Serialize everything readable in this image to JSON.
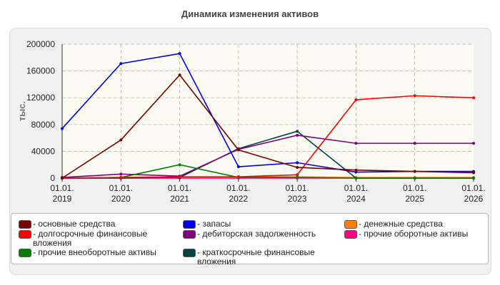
{
  "chart_data": {
    "type": "line",
    "title": "Динамика изменения активов",
    "ylabel": "тыс.",
    "xlabel": "",
    "categories": [
      "01.01. 2019",
      "01.01. 2020",
      "01.01. 2021",
      "01.01. 2022",
      "01.01. 2023",
      "01.01. 2024",
      "01.01. 2025",
      "01.01. 2026"
    ],
    "yticks": [
      "0",
      "40000",
      "80000",
      "120000",
      "160000",
      "200000"
    ],
    "ylim": [
      0,
      200000
    ],
    "grid": true,
    "legend_position": "bottom",
    "series": [
      {
        "name": "основные средства",
        "color": "#7a0000",
        "values": [
          0,
          57000,
          154000,
          42000,
          16000,
          12000,
          10000,
          8000
        ]
      },
      {
        "name": "долгосрочные финансовые вложения",
        "color": "#ff0000",
        "values": [
          0,
          1000,
          2000,
          2000,
          5000,
          117000,
          123000,
          120000
        ]
      },
      {
        "name": "прочие внеоборотные активы",
        "color": "#008000",
        "values": [
          0,
          1000,
          20000,
          1000,
          1000,
          0,
          0,
          0
        ]
      },
      {
        "name": "запасы",
        "color": "#0000ee",
        "values": [
          74000,
          171000,
          186000,
          17000,
          23000,
          9000,
          10000,
          10000
        ]
      },
      {
        "name": "дебиторская задолженность",
        "color": "#800080",
        "values": [
          1000,
          6000,
          3000,
          43000,
          64000,
          52000,
          52000,
          52000
        ]
      },
      {
        "name": "краткосрочные финансовые вложения",
        "color": "#004545",
        "values": [
          0,
          0,
          1000,
          44000,
          70000,
          0,
          0,
          0
        ]
      },
      {
        "name": "денежные средства",
        "color": "#ff8000",
        "values": [
          0,
          1000,
          1000,
          2000,
          2000,
          1000,
          1000,
          1000
        ]
      },
      {
        "name": "прочие оборотные активы",
        "color": "#ff0080",
        "values": [
          0,
          0,
          0,
          0,
          0,
          0,
          0,
          0
        ]
      }
    ]
  },
  "legend_order": [
    0,
    3,
    6,
    1,
    4,
    7,
    2,
    5
  ]
}
